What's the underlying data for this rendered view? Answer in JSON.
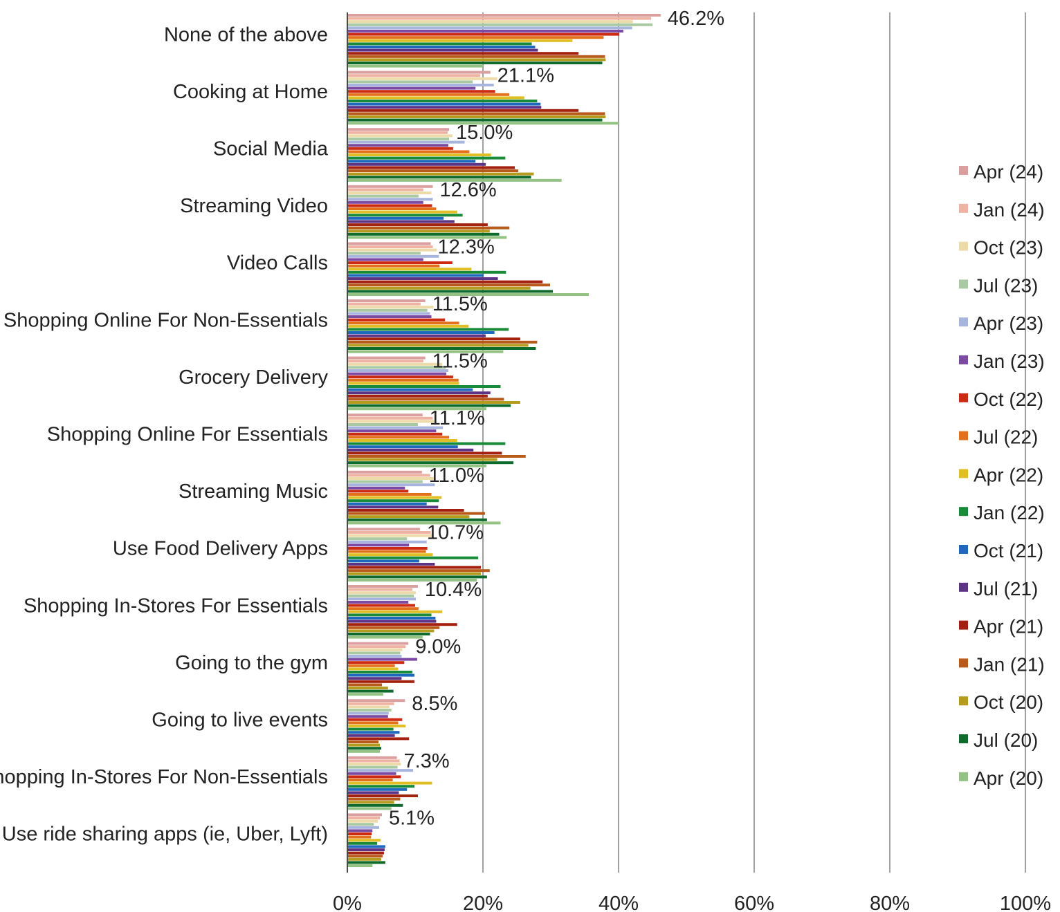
{
  "chart_data": {
    "type": "bar",
    "orientation": "horizontal",
    "categories": [
      "None of the above",
      "Cooking at Home",
      "Social Media",
      "Streaming Video",
      "Video Calls",
      "Shopping Online For Non-Essentials",
      "Grocery Delivery",
      "Shopping Online For Essentials",
      "Streaming Music",
      "Use Food Delivery Apps",
      "Shopping In-Stores For Essentials",
      "Going to the gym",
      "Going to live events",
      "Shopping In-Stores For Non-Essentials",
      "Use ride sharing apps (ie, Uber, Lyft)"
    ],
    "series": [
      {
        "name": "Apr (24)",
        "color": "#dc9f9f",
        "values": [
          46.2,
          21.1,
          15.0,
          12.6,
          12.3,
          11.5,
          11.5,
          11.1,
          11.0,
          10.7,
          10.4,
          9.0,
          8.5,
          7.3,
          5.1
        ]
      },
      {
        "name": "Jan (24)",
        "color": "#eeb3a3",
        "values": [
          44.8,
          19.6,
          14.8,
          11.2,
          12.6,
          10.8,
          11.2,
          12.6,
          12.2,
          12.3,
          9.6,
          8.6,
          6.9,
          7.7,
          4.8
        ]
      },
      {
        "name": "Oct (23)",
        "color": "#ecdba8",
        "values": [
          42.1,
          22.1,
          15.5,
          12.4,
          13.2,
          12.7,
          14.0,
          12.8,
          13.0,
          12.6,
          10.1,
          8.1,
          6.2,
          7.9,
          4.5
        ]
      },
      {
        "name": "Jul (23)",
        "color": "#a9c9a2",
        "values": [
          45.0,
          18.5,
          15.0,
          10.5,
          10.8,
          11.8,
          14.5,
          10.4,
          11.1,
          8.8,
          9.8,
          7.8,
          6.5,
          7.4,
          3.9
        ]
      },
      {
        "name": "Apr (23)",
        "color": "#a7b4dd",
        "values": [
          42.0,
          21.6,
          17.3,
          12.6,
          13.5,
          12.2,
          14.9,
          14.1,
          12.9,
          11.7,
          10.1,
          8.0,
          6.1,
          9.7,
          4.7
        ]
      },
      {
        "name": "Jan (23)",
        "color": "#7d4aa3",
        "values": [
          40.7,
          18.9,
          14.9,
          11.2,
          11.2,
          12.4,
          14.6,
          13.1,
          8.5,
          9.1,
          9.0,
          10.3,
          6.0,
          7.2,
          3.7
        ]
      },
      {
        "name": "Oct (22)",
        "color": "#cc2a13",
        "values": [
          40.1,
          21.8,
          15.6,
          12.5,
          15.5,
          14.4,
          15.6,
          14.0,
          9.0,
          11.8,
          10.0,
          8.4,
          8.1,
          7.9,
          3.6
        ]
      },
      {
        "name": "Jul (22)",
        "color": "#e3701a",
        "values": [
          37.8,
          23.9,
          18.0,
          13.1,
          13.6,
          16.5,
          16.4,
          15.0,
          12.4,
          11.6,
          10.5,
          7.0,
          7.5,
          6.7,
          3.5
        ]
      },
      {
        "name": "Apr (22)",
        "color": "#e1bf24",
        "values": [
          33.2,
          26.1,
          21.2,
          16.2,
          18.3,
          17.9,
          16.5,
          16.2,
          13.9,
          12.6,
          14.0,
          7.5,
          8.6,
          12.5,
          4.9
        ]
      },
      {
        "name": "Jan (22)",
        "color": "#188a38",
        "values": [
          27.2,
          28.0,
          23.3,
          17.0,
          23.4,
          23.8,
          22.6,
          23.3,
          13.5,
          19.3,
          12.4,
          9.6,
          6.8,
          9.9,
          4.4
        ]
      },
      {
        "name": "Oct (21)",
        "color": "#1e68bd",
        "values": [
          27.7,
          28.5,
          18.9,
          14.2,
          20.1,
          21.7,
          18.5,
          16.3,
          11.7,
          10.6,
          13.0,
          9.9,
          7.7,
          8.8,
          5.6
        ]
      },
      {
        "name": "Jul (21)",
        "color": "#5c3385",
        "values": [
          28.1,
          28.6,
          20.4,
          15.8,
          22.2,
          20.4,
          21.1,
          18.6,
          13.4,
          12.9,
          13.1,
          8.0,
          7.0,
          7.6,
          5.5
        ]
      },
      {
        "name": "Apr (21)",
        "color": "#a3210e",
        "values": [
          34.1,
          34.1,
          24.7,
          20.7,
          28.8,
          25.5,
          20.7,
          22.8,
          17.2,
          19.7,
          16.2,
          9.9,
          9.1,
          10.4,
          5.4
        ]
      },
      {
        "name": "Jan (21)",
        "color": "#b85a1a",
        "values": [
          38.0,
          38.0,
          25.2,
          23.9,
          29.9,
          28.0,
          23.1,
          26.3,
          20.3,
          21.0,
          13.6,
          5.1,
          4.6,
          7.8,
          5.2
        ]
      },
      {
        "name": "Oct (20)",
        "color": "#b59c1e",
        "values": [
          38.1,
          38.1,
          27.5,
          21.0,
          27.0,
          26.7,
          25.5,
          22.1,
          18.0,
          19.7,
          12.8,
          6.0,
          4.8,
          6.9,
          5.0
        ]
      },
      {
        "name": "Jul (20)",
        "color": "#0e6b2c",
        "values": [
          37.6,
          37.6,
          27.1,
          22.4,
          30.3,
          27.8,
          24.1,
          24.5,
          20.6,
          20.6,
          12.2,
          6.8,
          5.0,
          8.2,
          5.6
        ]
      },
      {
        "name": "Apr (20)",
        "color": "#93c282",
        "values": [
          20.0,
          40.0,
          31.6,
          23.5,
          35.6,
          23.0,
          20.5,
          20.5,
          22.6,
          19.1,
          11.1,
          5.3,
          4.8,
          6.5,
          3.7
        ]
      }
    ],
    "data_labels": [
      "46.2%",
      "21.1%",
      "15.0%",
      "12.6%",
      "12.3%",
      "11.5%",
      "11.5%",
      "11.1%",
      "11.0%",
      "10.7%",
      "10.4%",
      "9.0%",
      "8.5%",
      "7.3%",
      "5.1%"
    ],
    "x_ticks": [
      "0%",
      "20%",
      "40%",
      "60%",
      "80%",
      "100%"
    ],
    "xlim": [
      0,
      100
    ],
    "grid": true,
    "legend_position": "right"
  }
}
